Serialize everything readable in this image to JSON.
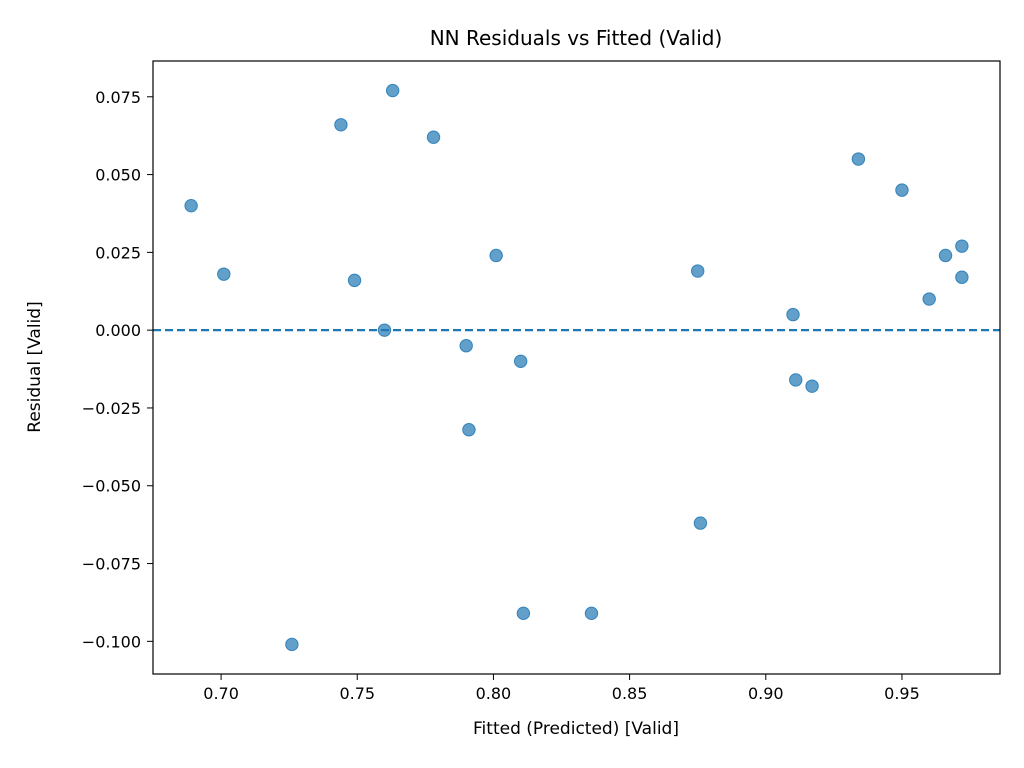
{
  "chart_data": {
    "type": "scatter",
    "title": "NN Residuals vs Fitted (Valid)",
    "xlabel": "Fitted (Predicted) [Valid]",
    "ylabel": "Residual [Valid]",
    "xlim": [
      0.675,
      0.986
    ],
    "ylim": [
      -0.1105,
      0.0865
    ],
    "xticks": [
      0.7,
      0.75,
      0.8,
      0.85,
      0.9,
      0.95
    ],
    "xtick_labels": [
      "0.70",
      "0.75",
      "0.80",
      "0.85",
      "0.90",
      "0.95"
    ],
    "yticks": [
      0.075,
      0.05,
      0.025,
      0.0,
      -0.025,
      -0.05,
      -0.075,
      -0.1
    ],
    "ytick_labels": [
      "0.075",
      "0.050",
      "0.025",
      "0.000",
      "−0.025",
      "−0.050",
      "−0.075",
      "−0.100"
    ],
    "reference_line": {
      "y": 0.0,
      "style": "dashed",
      "color": "#1f77b4"
    },
    "point_color": "#1f77b4",
    "grid": false,
    "points": [
      {
        "x": 0.689,
        "y": 0.04
      },
      {
        "x": 0.701,
        "y": 0.018
      },
      {
        "x": 0.726,
        "y": -0.101
      },
      {
        "x": 0.744,
        "y": 0.066
      },
      {
        "x": 0.749,
        "y": 0.016
      },
      {
        "x": 0.76,
        "y": 0.0
      },
      {
        "x": 0.763,
        "y": 0.077
      },
      {
        "x": 0.778,
        "y": 0.062
      },
      {
        "x": 0.79,
        "y": -0.005
      },
      {
        "x": 0.791,
        "y": -0.032
      },
      {
        "x": 0.801,
        "y": 0.024
      },
      {
        "x": 0.81,
        "y": -0.01
      },
      {
        "x": 0.811,
        "y": -0.091
      },
      {
        "x": 0.836,
        "y": -0.091
      },
      {
        "x": 0.875,
        "y": 0.019
      },
      {
        "x": 0.876,
        "y": -0.062
      },
      {
        "x": 0.91,
        "y": 0.005
      },
      {
        "x": 0.911,
        "y": -0.016
      },
      {
        "x": 0.917,
        "y": -0.018
      },
      {
        "x": 0.934,
        "y": 0.055
      },
      {
        "x": 0.95,
        "y": 0.045
      },
      {
        "x": 0.96,
        "y": 0.01
      },
      {
        "x": 0.966,
        "y": 0.024
      },
      {
        "x": 0.972,
        "y": 0.027
      },
      {
        "x": 0.972,
        "y": 0.017
      }
    ]
  }
}
